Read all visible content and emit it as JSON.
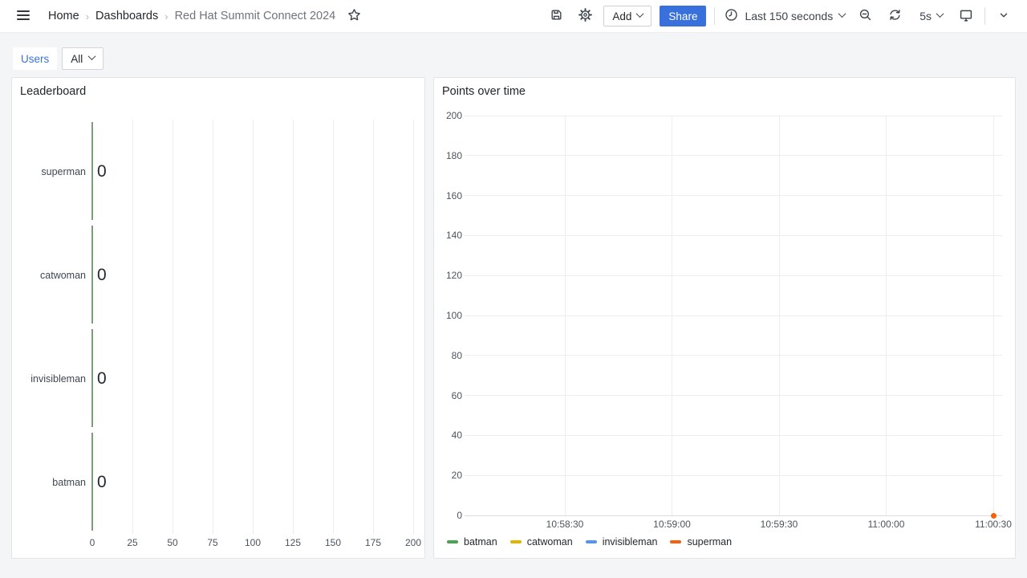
{
  "nav": {
    "breadcrumbs": [
      {
        "label": "Home"
      },
      {
        "label": "Dashboards"
      },
      {
        "label": "Red Hat Summit Connect 2024"
      }
    ],
    "add_button": "Add",
    "share_button": "Share",
    "time_range": "Last 150 seconds",
    "refresh_interval": "5s"
  },
  "filters": {
    "users_label": "Users",
    "users_value": "All"
  },
  "colors": {
    "accent_blue": "#3871DC",
    "page_bg": "#F4F5F6",
    "gridline": "#ecedee",
    "zero_line": "#dbdde0",
    "bar_green": "#7D9B7A"
  },
  "chart_data": [
    {
      "type": "bar",
      "orientation": "horizontal",
      "title": "Leaderboard",
      "categories": [
        "superman",
        "catwoman",
        "invisibleman",
        "batman"
      ],
      "values": [
        0,
        0,
        0,
        0
      ],
      "xlim": [
        0,
        200
      ],
      "x_ticks": [
        0,
        25,
        50,
        75,
        100,
        125,
        150,
        175,
        200
      ],
      "bar_color": "#7D9B7A",
      "grid": true,
      "legend": "none"
    },
    {
      "type": "line",
      "title": "Points over time",
      "ylim": [
        0,
        200
      ],
      "y_ticks": [
        0,
        20,
        40,
        60,
        80,
        100,
        120,
        140,
        160,
        180,
        200
      ],
      "x_ticks": [
        "10:58:30",
        "10:59:00",
        "10:59:30",
        "11:00:00",
        "11:00:30"
      ],
      "grid": true,
      "legend_position": "bottom",
      "series": [
        {
          "name": "batman",
          "color": "#48A44E",
          "values": []
        },
        {
          "name": "catwoman",
          "color": "#E0B400",
          "values": []
        },
        {
          "name": "invisibleman",
          "color": "#5794F2",
          "values": []
        },
        {
          "name": "superman",
          "color": "#F4610A",
          "values": [
            {
              "x": "11:00:30",
              "y": 0
            }
          ]
        }
      ]
    }
  ]
}
